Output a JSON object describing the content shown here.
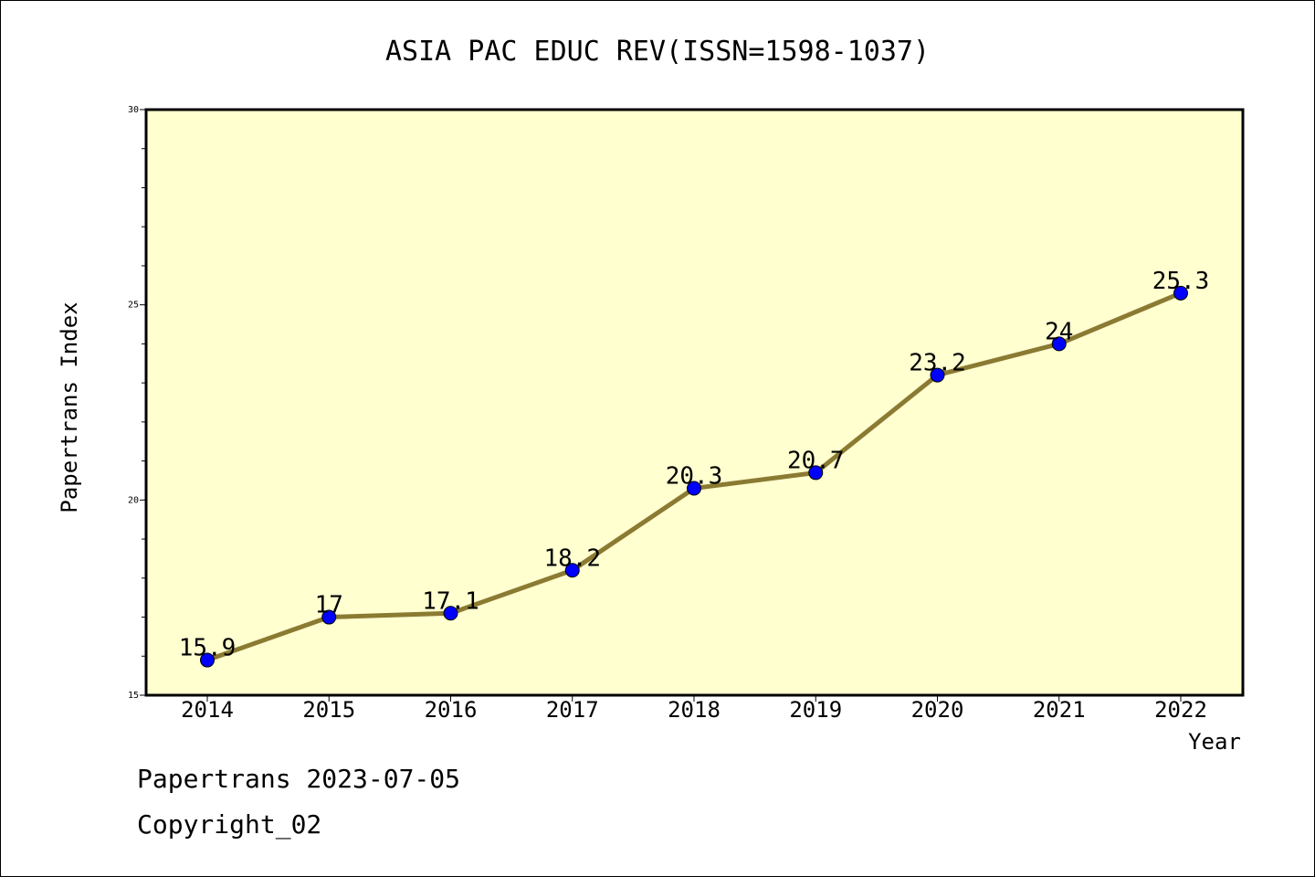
{
  "chart_data": {
    "type": "line",
    "title": "ASIA PAC EDUC REV(ISSN=1598-1037)",
    "xlabel": "Year",
    "ylabel": "Papertrans Index",
    "categories": [
      "2014",
      "2015",
      "2016",
      "2017",
      "2018",
      "2019",
      "2020",
      "2021",
      "2022"
    ],
    "values": [
      15.9,
      17,
      17.1,
      18.2,
      20.3,
      20.7,
      23.2,
      24,
      25.3
    ],
    "point_labels": [
      "15.9",
      "17",
      "17.1",
      "18.2",
      "20.3",
      "20.7",
      "23.2",
      "24",
      "25.3"
    ],
    "ylim": [
      15,
      30
    ],
    "yticks": [
      "15",
      "20",
      "25",
      "30"
    ],
    "grid": false,
    "legend": "none",
    "colors": {
      "plot_background": "#ffffd0",
      "line": "#8b7a32",
      "marker": "#0000ff"
    }
  },
  "footer": {
    "source_line": "Papertrans 2023-07-05",
    "copyright_line": "Copyright_02"
  }
}
